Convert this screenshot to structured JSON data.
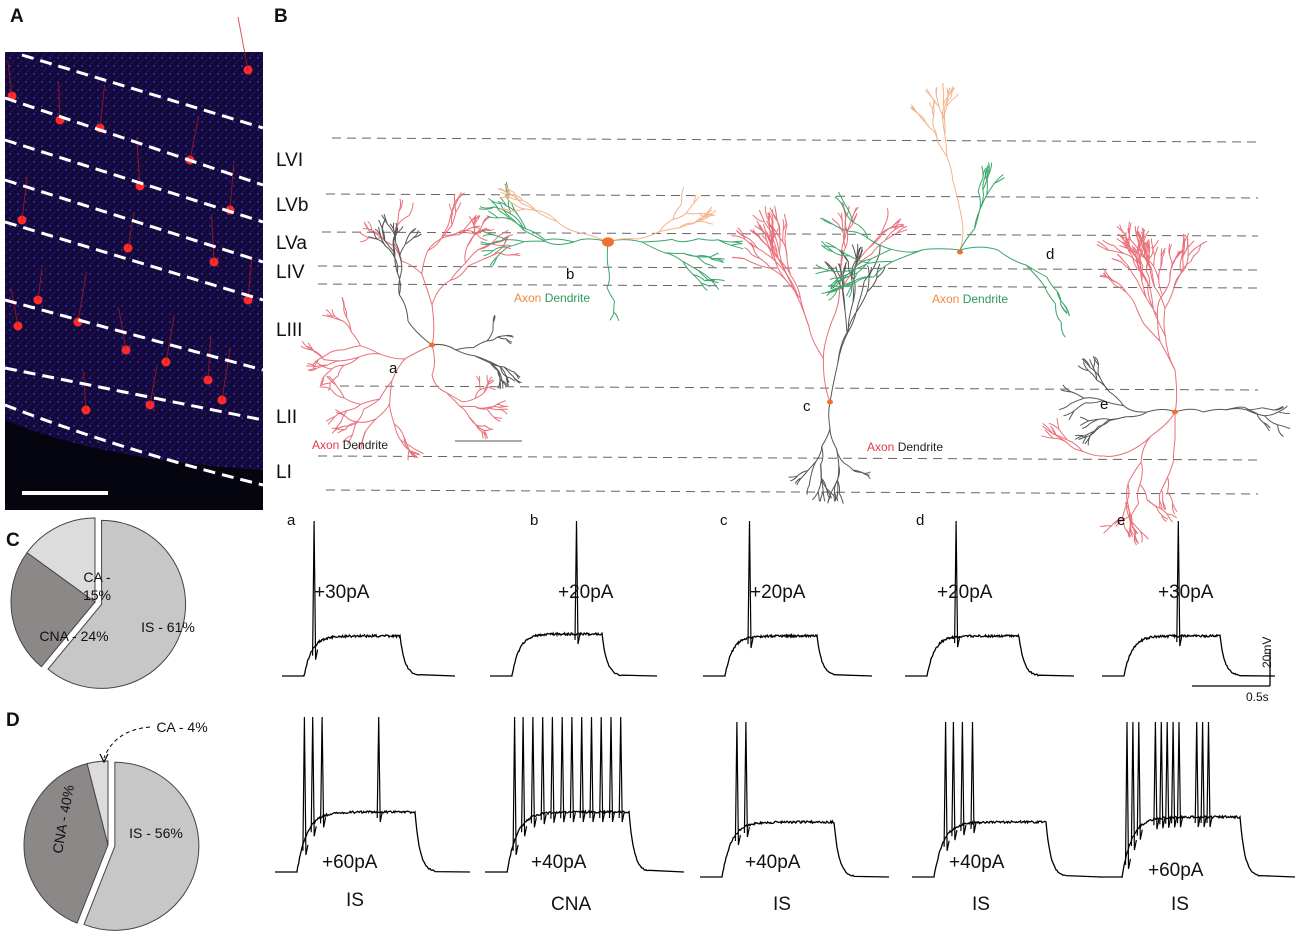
{
  "panels": {
    "A": "A",
    "B": "B",
    "C": "C",
    "D": "D"
  },
  "layers": [
    "LVI",
    "LVb",
    "LVa",
    "LIV",
    "LIII",
    "LII",
    "LI"
  ],
  "legend_axon": "Axon",
  "legend_dendrite": "Dendrite",
  "neurons": [
    "a",
    "b",
    "c",
    "d",
    "e"
  ],
  "traces": {
    "letters": [
      "a",
      "b",
      "c",
      "d",
      "e"
    ],
    "top_currents": [
      "+30pA",
      "+20pA",
      "+20pA",
      "+20pA",
      "+30pA"
    ],
    "bottom_currents": [
      "+60pA",
      "+40pA",
      "+40pA",
      "+40pA",
      "+60pA"
    ],
    "types": [
      "IS",
      "CNA",
      "IS",
      "IS",
      "IS"
    ]
  },
  "scale_bar": {
    "voltage": "20mV",
    "time": "0.5s"
  },
  "pie_C": {
    "slices": [
      {
        "label": "IS - 61%",
        "value": 61,
        "color": "#c7c7c7"
      },
      {
        "label": "CNA - 24%",
        "value": 24,
        "color": "#8d8888"
      },
      {
        "label": "CA - 15%",
        "value": 15,
        "color": "#dcdcdc"
      }
    ]
  },
  "pie_D": {
    "slices": [
      {
        "label": "IS - 56%",
        "value": 56,
        "color": "#c7c7c7"
      },
      {
        "label": "CNA - 40%",
        "value": 40,
        "color": "#8d8888"
      },
      {
        "label": "CA - 4%",
        "value": 4,
        "color": "#dcdcdc"
      }
    ]
  },
  "colors": {
    "axon_red": "#e8707a",
    "axon_orange": "#f5b48a",
    "dendrite_green": "#3aa56a",
    "dendrite_gray": "#555555",
    "soma": "#f07030",
    "fluor_red": "#ff2a2a",
    "fluor_blue": "#1a1aa0"
  }
}
